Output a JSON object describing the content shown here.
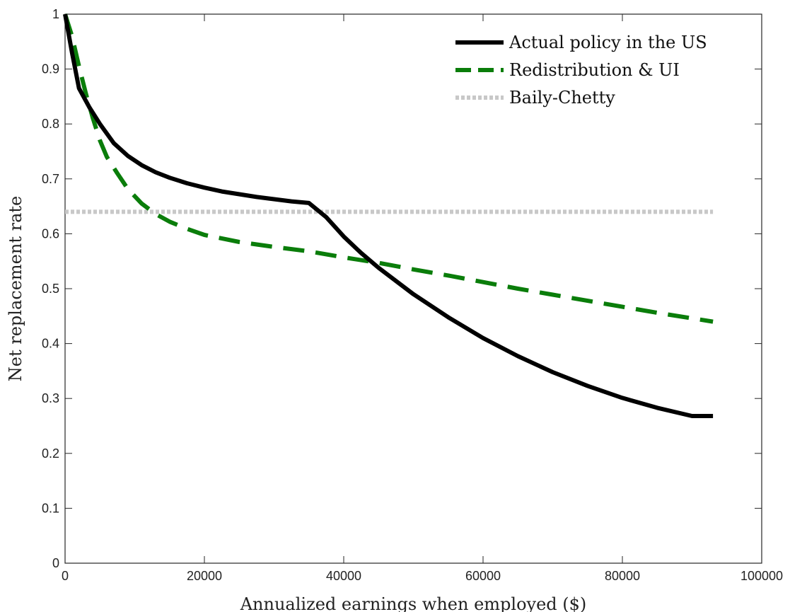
{
  "chart_data": {
    "type": "line",
    "xlabel": "Annualized earnings when employed ($)",
    "ylabel": "Net replacement rate",
    "xlim": [
      0,
      100000
    ],
    "ylim": [
      0,
      1
    ],
    "xticks": [
      0,
      20000,
      40000,
      60000,
      80000,
      100000
    ],
    "xtick_labels": [
      "0",
      "20000",
      "40000",
      "60000",
      "80000",
      "100000"
    ],
    "yticks": [
      0,
      0.1,
      0.2,
      0.3,
      0.4,
      0.5,
      0.6,
      0.7,
      0.8,
      0.9,
      1
    ],
    "ytick_labels": [
      "0",
      "0.1",
      "0.2",
      "0.3",
      "0.4",
      "0.5",
      "0.6",
      "0.7",
      "0.8",
      "0.9",
      "1"
    ],
    "grid": false,
    "legend_position": "top-right",
    "series": [
      {
        "name": "Actual policy in the US",
        "color": "#000000",
        "style": "solid",
        "x": [
          0,
          1000,
          2000,
          3500,
          5000,
          7000,
          9000,
          11000,
          13000,
          15000,
          17500,
          20000,
          22500,
          25000,
          27500,
          30000,
          32500,
          35000,
          37500,
          40000,
          42500,
          45000,
          50000,
          55000,
          60000,
          65000,
          70000,
          75000,
          80000,
          85000,
          90000,
          93000
        ],
        "y": [
          1.0,
          0.93,
          0.865,
          0.83,
          0.8,
          0.765,
          0.742,
          0.725,
          0.712,
          0.702,
          0.692,
          0.684,
          0.677,
          0.672,
          0.667,
          0.663,
          0.659,
          0.656,
          0.63,
          0.595,
          0.565,
          0.538,
          0.49,
          0.448,
          0.41,
          0.377,
          0.348,
          0.323,
          0.301,
          0.283,
          0.268,
          0.268
        ]
      },
      {
        "name": "Redistribution & UI",
        "color": "#0a7d0a",
        "style": "dashed",
        "x": [
          0,
          1000,
          2000,
          3000,
          4000,
          5000,
          6000,
          7500,
          9000,
          11000,
          13000,
          15000,
          17500,
          20000,
          25000,
          30000,
          35000,
          40000,
          45000,
          50000,
          55000,
          60000,
          65000,
          70000,
          75000,
          80000,
          85000,
          90000,
          93000
        ],
        "y": [
          1.0,
          0.96,
          0.905,
          0.855,
          0.81,
          0.77,
          0.74,
          0.71,
          0.682,
          0.655,
          0.636,
          0.622,
          0.609,
          0.598,
          0.585,
          0.576,
          0.568,
          0.557,
          0.547,
          0.535,
          0.524,
          0.512,
          0.5,
          0.489,
          0.478,
          0.467,
          0.456,
          0.446,
          0.44
        ]
      },
      {
        "name": "Baily-Chetty",
        "color": "#c8c8c8",
        "style": "dotted",
        "x": [
          0,
          93000
        ],
        "y": [
          0.64,
          0.64
        ]
      }
    ]
  }
}
